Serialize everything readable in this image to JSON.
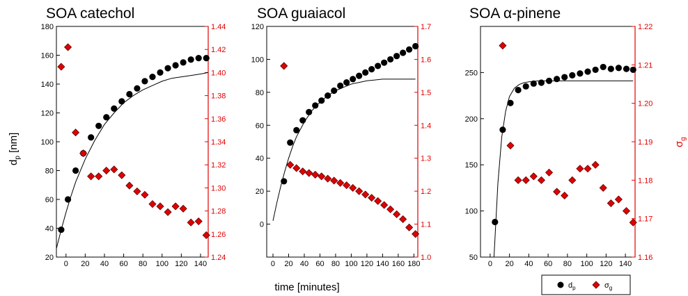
{
  "figure": {
    "xlabel": "time [minutes]",
    "ylabel_left": "d",
    "ylabel_left_sub": "p",
    "ylabel_left_unit": " [nm]",
    "ylabel_right": "σ",
    "ylabel_right_sub": "g",
    "legend": [
      {
        "symbol": "circle",
        "text": "d",
        "sub": "p"
      },
      {
        "symbol": "diamond",
        "text": "σ",
        "sub": "g"
      }
    ],
    "colors": {
      "dp": "#000000",
      "sigma": "#e00000",
      "sigma_edge": "#5a0000",
      "fit": "#000000",
      "right_axis": "#e00000"
    }
  },
  "chart_data": [
    {
      "type": "scatter",
      "title": "SOA catechol",
      "xlim": [
        -10,
        148
      ],
      "xticks": [
        0,
        20,
        40,
        60,
        80,
        100,
        120,
        140
      ],
      "left_ylim": [
        20,
        180
      ],
      "left_ticks": [
        20,
        40,
        60,
        80,
        100,
        120,
        140,
        160,
        180
      ],
      "right_ylim": [
        1.24,
        1.44
      ],
      "right_ticks": [
        "1.24",
        "1.26",
        "1.28",
        "1.30",
        "1.32",
        "1.34",
        "1.36",
        "1.38",
        "1.40",
        "1.42",
        "1.44"
      ],
      "series": [
        {
          "name": "dp",
          "axis": "left",
          "marker": "circle",
          "x": [
            -5,
            2,
            10,
            18,
            26,
            34,
            42,
            50,
            58,
            66,
            74,
            82,
            90,
            98,
            106,
            114,
            122,
            130,
            138,
            146
          ],
          "y": [
            39,
            60,
            80,
            92,
            103,
            111,
            117,
            123,
            128,
            133,
            137,
            142,
            145,
            148,
            151,
            153,
            155,
            157,
            158,
            158
          ]
        },
        {
          "name": "sigma_g",
          "axis": "right",
          "marker": "diamond",
          "x": [
            -5,
            2,
            10,
            18,
            26,
            34,
            42,
            50,
            58,
            66,
            74,
            82,
            90,
            98,
            106,
            114,
            122,
            130,
            138,
            146
          ],
          "y": [
            1.405,
            1.422,
            1.348,
            1.33,
            1.31,
            1.31,
            1.315,
            1.316,
            1.311,
            1.302,
            1.297,
            1.294,
            1.286,
            1.284,
            1.279,
            1.284,
            1.282,
            1.27,
            1.271,
            1.259
          ]
        },
        {
          "name": "fit",
          "axis": "left",
          "marker": "line",
          "x": [
            -10,
            -5,
            0,
            5,
            10,
            20,
            30,
            40,
            50,
            60,
            70,
            80,
            90,
            100,
            110,
            120,
            130,
            140,
            148
          ],
          "y": [
            26,
            39,
            51,
            62,
            72,
            88,
            101,
            112,
            120,
            127,
            132,
            136,
            139,
            142,
            144,
            145,
            146,
            147,
            148
          ]
        }
      ]
    },
    {
      "type": "scatter",
      "title": "SOA guaiacol",
      "xlim": [
        -8,
        185
      ],
      "xticks": [
        0,
        20,
        40,
        60,
        80,
        100,
        120,
        140,
        160,
        180
      ],
      "left_ylim": [
        -20,
        120
      ],
      "left_ticks": [
        0,
        20,
        40,
        60,
        80,
        100,
        120
      ],
      "right_ylim": [
        1.0,
        1.7
      ],
      "right_ticks": [
        "1.0",
        "1.1",
        "1.2",
        "1.3",
        "1.4",
        "1.5",
        "1.6",
        "1.7"
      ],
      "series": [
        {
          "name": "dp",
          "axis": "left",
          "marker": "circle",
          "x": [
            14,
            22,
            30,
            38,
            46,
            54,
            62,
            70,
            78,
            86,
            94,
            102,
            110,
            118,
            126,
            134,
            142,
            150,
            158,
            166,
            174,
            182
          ],
          "y": [
            26,
            49.5,
            57,
            63,
            68,
            72,
            75,
            78,
            81,
            84,
            86,
            88,
            90,
            92,
            94,
            96,
            98,
            100,
            102,
            104,
            106,
            108
          ]
        },
        {
          "name": "sigma_g",
          "axis": "right",
          "marker": "diamond",
          "x": [
            14,
            22,
            30,
            38,
            46,
            54,
            62,
            70,
            78,
            86,
            94,
            102,
            110,
            118,
            126,
            134,
            142,
            150,
            158,
            166,
            174,
            182
          ],
          "y": [
            1.58,
            1.28,
            1.27,
            1.26,
            1.255,
            1.25,
            1.245,
            1.238,
            1.232,
            1.225,
            1.218,
            1.21,
            1.2,
            1.19,
            1.18,
            1.17,
            1.158,
            1.145,
            1.13,
            1.115,
            1.09,
            1.07
          ]
        },
        {
          "name": "fit",
          "axis": "left",
          "marker": "line",
          "x": [
            0,
            5,
            10,
            15,
            20,
            25,
            30,
            40,
            50,
            60,
            70,
            80,
            90,
            100,
            110,
            120,
            130,
            140,
            150,
            160,
            170,
            182
          ],
          "y": [
            2,
            13,
            23,
            32,
            40,
            47,
            53,
            62,
            69,
            74,
            78,
            81,
            83,
            85,
            86,
            87,
            87.5,
            88,
            88,
            88,
            88,
            88
          ]
        }
      ]
    },
    {
      "type": "scatter",
      "title": "SOA α-pinene",
      "xlim": [
        -10,
        150
      ],
      "xticks": [
        0,
        20,
        40,
        60,
        80,
        100,
        120,
        140
      ],
      "left_ylim": [
        50,
        300
      ],
      "left_ticks": [
        50,
        100,
        150,
        200,
        250
      ],
      "right_ylim": [
        1.16,
        1.22
      ],
      "right_ticks": [
        "1.16",
        "1.17",
        "1.18",
        "1.19",
        "1.20",
        "1.21",
        "1.22"
      ],
      "series": [
        {
          "name": "dp",
          "axis": "left",
          "marker": "circle",
          "x": [
            5,
            13,
            21,
            29,
            37,
            45,
            53,
            61,
            69,
            77,
            85,
            93,
            101,
            109,
            117,
            125,
            133,
            141,
            148
          ],
          "y": [
            88,
            188,
            217,
            231,
            235,
            238,
            239,
            241,
            243,
            245,
            247,
            249,
            251,
            253,
            256,
            254,
            255,
            254,
            253
          ]
        },
        {
          "name": "sigma_g",
          "axis": "right",
          "marker": "diamond",
          "x": [
            13,
            21,
            29,
            37,
            45,
            53,
            61,
            69,
            77,
            85,
            93,
            101,
            109,
            117,
            125,
            133,
            141,
            148
          ],
          "y": [
            1.215,
            1.189,
            1.18,
            1.18,
            1.181,
            1.18,
            1.182,
            1.177,
            1.176,
            1.18,
            1.183,
            1.183,
            1.184,
            1.178,
            1.174,
            1.175,
            1.172,
            1.169
          ]
        },
        {
          "name": "fit",
          "axis": "left",
          "marker": "line",
          "x": [
            4,
            8,
            12,
            16,
            20,
            25,
            30,
            35,
            40,
            50,
            60,
            70,
            80,
            100,
            120,
            148
          ],
          "y": [
            50,
            130,
            180,
            208,
            224,
            233,
            237,
            239,
            240,
            241,
            241,
            241,
            241,
            241,
            241,
            241
          ]
        }
      ]
    }
  ]
}
